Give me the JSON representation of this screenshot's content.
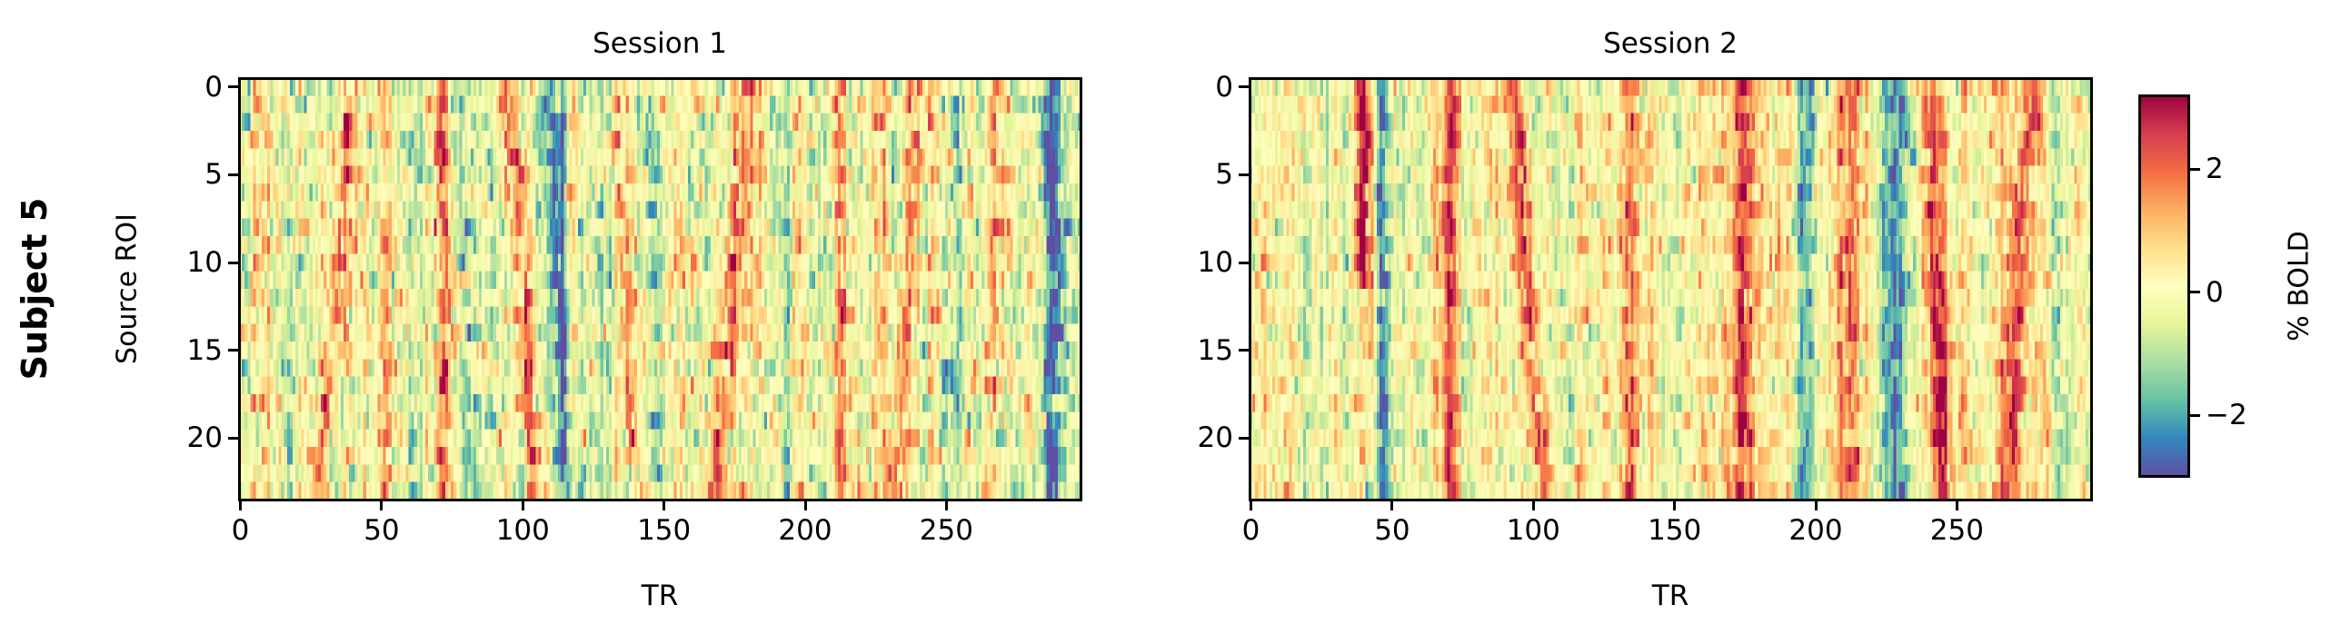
{
  "figure": {
    "row_label": "Subject 5",
    "colorbar": {
      "label": "% BOLD",
      "ticks": [
        {
          "value": 2,
          "label": "2"
        },
        {
          "value": 0,
          "label": "0"
        },
        {
          "value": -2,
          "label": "−2"
        }
      ],
      "vmin": -3.0,
      "vmax": 3.2,
      "cmap": "Spectral_r",
      "cmap_stops": [
        "#5e4fa2",
        "#3288bd",
        "#66c2a5",
        "#abdda4",
        "#e6f598",
        "#ffffbf",
        "#fee08b",
        "#fdae61",
        "#f46d43",
        "#d53e4f",
        "#9e0142"
      ]
    },
    "panels": [
      {
        "title": "Session 1",
        "xlabel": "TR",
        "ylabel": "Source ROI",
        "xticks": [
          "0",
          "50",
          "100",
          "150",
          "200",
          "250"
        ],
        "yticks": [
          "0",
          "5",
          "10",
          "15",
          "20"
        ]
      },
      {
        "title": "Session 2",
        "xlabel": "TR",
        "ylabel": "",
        "xticks": [
          "0",
          "50",
          "100",
          "150",
          "200",
          "250"
        ],
        "yticks": [
          "0",
          "5",
          "10",
          "15",
          "20"
        ]
      }
    ]
  },
  "chart_data": [
    {
      "type": "heatmap",
      "title": "Session 1",
      "row_label": "Subject 5",
      "xlabel": "TR",
      "ylabel": "Source ROI",
      "xlim": [
        -0.5,
        297.5
      ],
      "ylim": [
        23.5,
        -0.5
      ],
      "n_rows": 24,
      "n_cols": 298,
      "xticks": [
        0,
        50,
        100,
        150,
        200,
        250
      ],
      "yticks": [
        0,
        5,
        10,
        15,
        20
      ],
      "colorbar": {
        "label": "% BOLD",
        "range": [
          -3.0,
          3.2
        ],
        "ticks": [
          -2,
          0,
          2
        ]
      },
      "seed": 11,
      "baseline_noise": 0.9,
      "bands": [
        {
          "tr_top": 40,
          "tr_bottom": 28,
          "amp": 1.9,
          "width": 2.5,
          "kind": "pos"
        },
        {
          "tr_top": 72,
          "tr_bottom": 73,
          "amp": 1.4,
          "width": 2.0,
          "kind": "pos"
        },
        {
          "tr_top": 78,
          "tr_bottom": 80,
          "amp": -1.4,
          "width": 2.5,
          "kind": "neg"
        },
        {
          "tr_top": 95,
          "tr_bottom": 105,
          "amp": 1.7,
          "width": 2.5,
          "kind": "pos"
        },
        {
          "tr_top": 110,
          "tr_bottom": 115,
          "amp": -2.2,
          "width": 3.5,
          "kind": "neg"
        },
        {
          "tr_top": 134,
          "tr_bottom": 140,
          "amp": 1.5,
          "width": 2.5,
          "kind": "pos"
        },
        {
          "tr_top": 146,
          "tr_bottom": 146,
          "amp": -1.2,
          "width": 2.0,
          "kind": "neg"
        },
        {
          "tr_top": 180,
          "tr_bottom": 168,
          "amp": 1.8,
          "width": 2.5,
          "kind": "pos"
        },
        {
          "tr_top": 190,
          "tr_bottom": 185,
          "amp": -1.0,
          "width": 2.0,
          "kind": "neg"
        },
        {
          "tr_top": 212,
          "tr_bottom": 212,
          "amp": 1.3,
          "width": 2.0,
          "kind": "pos"
        },
        {
          "tr_top": 240,
          "tr_bottom": 232,
          "amp": 1.5,
          "width": 2.5,
          "kind": "pos"
        },
        {
          "tr_top": 255,
          "tr_bottom": 255,
          "amp": -2.0,
          "width": 2.5,
          "kind": "neg"
        },
        {
          "tr_top": 268,
          "tr_bottom": 264,
          "amp": 1.2,
          "width": 2.0,
          "kind": "pos"
        },
        {
          "tr_top": 287,
          "tr_bottom": 287,
          "amp": -2.3,
          "width": 2.5,
          "kind": "neg"
        }
      ]
    },
    {
      "type": "heatmap",
      "title": "Session 2",
      "xlabel": "TR",
      "ylabel": "",
      "xlim": [
        -0.5,
        297.5
      ],
      "ylim": [
        23.5,
        -0.5
      ],
      "n_rows": 24,
      "n_cols": 298,
      "xticks": [
        0,
        50,
        100,
        150,
        200,
        250
      ],
      "yticks": [
        0,
        5,
        10,
        15,
        20
      ],
      "colorbar": {
        "label": "% BOLD",
        "range": [
          -3.0,
          3.2
        ],
        "ticks": [
          -2,
          0,
          2
        ]
      },
      "seed": 23,
      "baseline_noise": 0.75,
      "bands": [
        {
          "tr_top": 40,
          "tr_bottom": 40,
          "amp": 2.8,
          "width": 2.0,
          "kind": "pos",
          "rows": [
            0,
            11
          ]
        },
        {
          "tr_top": 47,
          "tr_bottom": 47,
          "amp": -2.0,
          "width": 2.0,
          "kind": "neg"
        },
        {
          "tr_top": 70,
          "tr_bottom": 70,
          "amp": 1.6,
          "width": 2.5,
          "kind": "pos"
        },
        {
          "tr_top": 93,
          "tr_bottom": 103,
          "amp": 2.3,
          "width": 2.5,
          "kind": "pos"
        },
        {
          "tr_top": 134,
          "tr_bottom": 134,
          "amp": 1.6,
          "width": 2.5,
          "kind": "pos"
        },
        {
          "tr_top": 176,
          "tr_bottom": 174,
          "amp": 2.1,
          "width": 3.0,
          "kind": "pos"
        },
        {
          "tr_top": 196,
          "tr_bottom": 194,
          "amp": -1.1,
          "width": 2.0,
          "kind": "neg"
        },
        {
          "tr_top": 210,
          "tr_bottom": 210,
          "amp": 1.7,
          "width": 2.5,
          "kind": "pos"
        },
        {
          "tr_top": 228,
          "tr_bottom": 228,
          "amp": -2.6,
          "width": 3.0,
          "kind": "neg"
        },
        {
          "tr_top": 240,
          "tr_bottom": 245,
          "amp": 1.9,
          "width": 3.0,
          "kind": "pos"
        },
        {
          "tr_top": 276,
          "tr_bottom": 268,
          "amp": 1.9,
          "width": 3.0,
          "kind": "pos"
        },
        {
          "tr_top": 284,
          "tr_bottom": 286,
          "amp": -1.3,
          "width": 2.0,
          "kind": "neg"
        }
      ]
    }
  ]
}
